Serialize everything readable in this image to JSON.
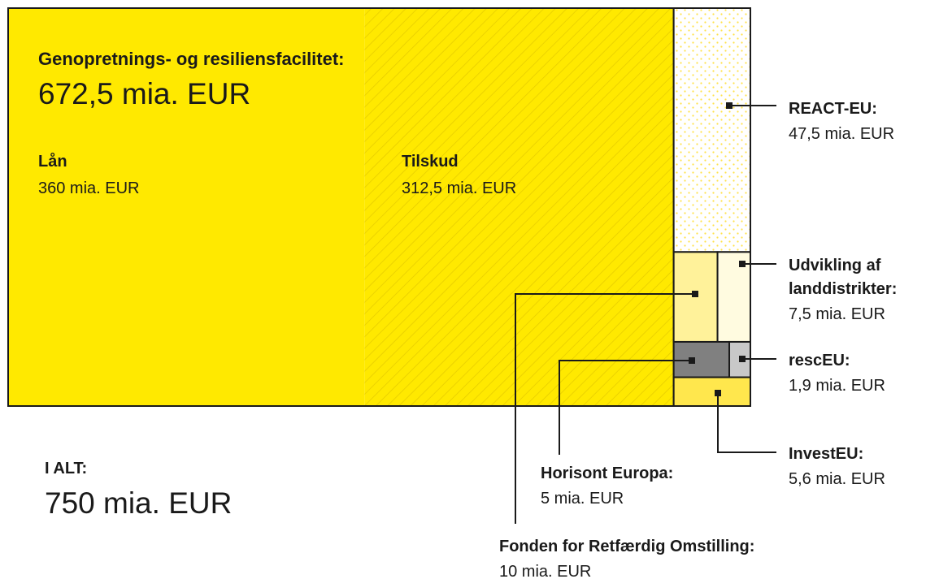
{
  "chart_data": {
    "type": "treemap",
    "total": {
      "name": "I ALT:",
      "value": 750,
      "value_label": "750 mia. EUR"
    },
    "main": {
      "name": "Genopretnings- og resiliensfacilitet:",
      "value": 672.5,
      "value_label": "672,5 mia. EUR",
      "color": "#ffe900",
      "parts": [
        {
          "name": "Lån",
          "value": 360,
          "value_label": "360 mia. EUR",
          "color": "#ffe900"
        },
        {
          "name": "Tilskud",
          "value": 312.5,
          "value_label": "312,5 mia. EUR",
          "color": "#ffe900"
        }
      ]
    },
    "items": [
      {
        "name": "REACT-EU:",
        "value": 47.5,
        "value_label": "47,5 mia. EUR",
        "color": "#ffffff"
      },
      {
        "name": [
          "Udvikling af",
          "landdistrikter:"
        ],
        "value": 7.5,
        "value_label": "7,5 mia. EUR",
        "color": "#fffbe0"
      },
      {
        "name": "rescEU:",
        "value": 1.9,
        "value_label": "1,9 mia. EUR",
        "color": "#c8c8c8"
      },
      {
        "name": "InvestEU:",
        "value": 5.6,
        "value_label": "5,6 mia. EUR",
        "color": "#ffe74d"
      },
      {
        "name": "Horisont Europa:",
        "value": 5,
        "value_label": "5 mia. EUR",
        "color": "#808080"
      },
      {
        "name": "Fonden for Retfærdig Omstilling:",
        "value": 10,
        "value_label": "10 mia. EUR",
        "color": "#fff29a"
      }
    ]
  }
}
